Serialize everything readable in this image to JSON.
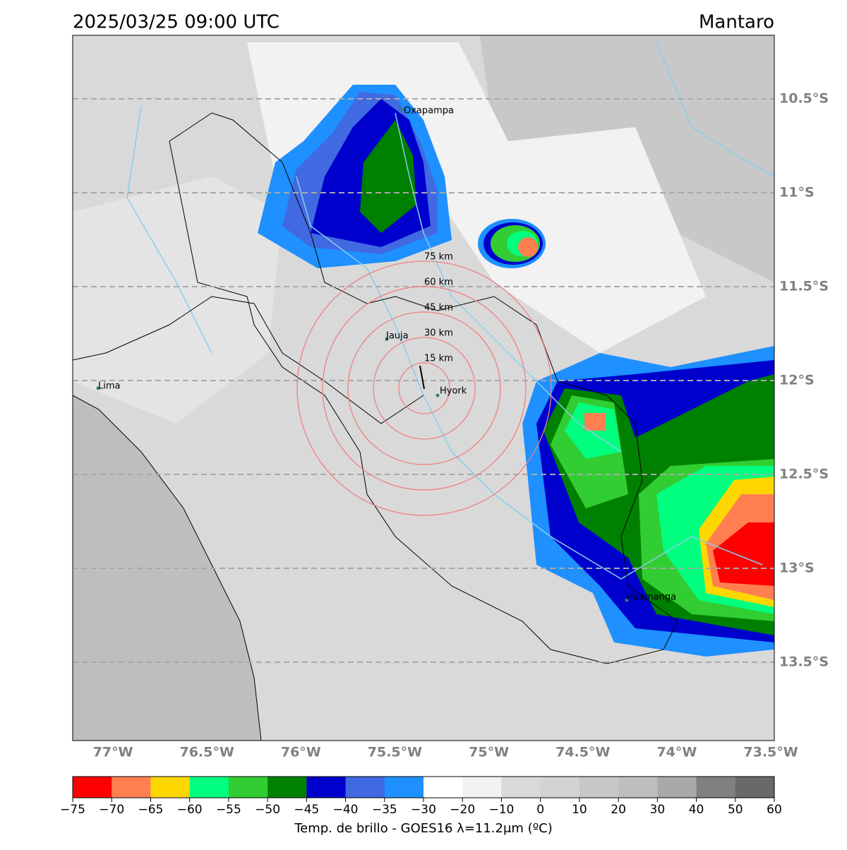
{
  "header": {
    "title": "2025/03/25 09:00 UTC",
    "region": "Mantaro"
  },
  "map": {
    "lon_ticks": [
      {
        "value": -77,
        "label": "77°W"
      },
      {
        "value": -76.5,
        "label": "76.5°W"
      },
      {
        "value": -76,
        "label": "76°W"
      },
      {
        "value": -75.5,
        "label": "75.5°W"
      },
      {
        "value": -75,
        "label": "75°W"
      },
      {
        "value": -74.5,
        "label": "74.5°W"
      },
      {
        "value": -74,
        "label": "74°W"
      },
      {
        "value": -73.5,
        "label": "73.5°W"
      }
    ],
    "lat_ticks": [
      {
        "value": -10.5,
        "label": "10.5°S"
      },
      {
        "value": -11,
        "label": "11°S"
      },
      {
        "value": -11.5,
        "label": "11.5°S"
      },
      {
        "value": -12,
        "label": "12°S"
      },
      {
        "value": -12.5,
        "label": "12.5°S"
      },
      {
        "value": -13,
        "label": "13°S"
      },
      {
        "value": -13.5,
        "label": "13.5°S"
      }
    ],
    "places": [
      "Oxapampa",
      "Jauja",
      "Hyork",
      "Lima",
      "Huamanga"
    ],
    "rings": [
      {
        "value": 15,
        "label": "15 km"
      },
      {
        "value": 30,
        "label": "30 km"
      },
      {
        "value": 45,
        "label": "45 km"
      },
      {
        "value": 60,
        "label": "60 km"
      },
      {
        "value": 75,
        "label": "75 km"
      }
    ]
  },
  "colorbar": {
    "label": "Temp. de brillo - GOES16 λ=11.2μm (ºC)",
    "ticks": [
      {
        "value": -75,
        "label": "−75"
      },
      {
        "value": -70,
        "label": "−70"
      },
      {
        "value": -65,
        "label": "−65"
      },
      {
        "value": -60,
        "label": "−60"
      },
      {
        "value": -55,
        "label": "−55"
      },
      {
        "value": -50,
        "label": "−50"
      },
      {
        "value": -45,
        "label": "−45"
      },
      {
        "value": -40,
        "label": "−40"
      },
      {
        "value": -35,
        "label": "−35"
      },
      {
        "value": -30,
        "label": "−30"
      },
      {
        "value": -20,
        "label": "−20"
      },
      {
        "value": -10,
        "label": "−10"
      },
      0,
      10,
      20,
      30,
      40,
      50,
      60
    ],
    "colors": [
      "#ff0000",
      "#ff7f50",
      "#ffd700",
      "#00ff7f",
      "#32cd32",
      "#008000",
      "#0000cd",
      "#4169e1",
      "#1e90ff",
      "#ffffff",
      "#f2f2f2",
      "#d9d9d9",
      "#d3d3d3",
      "#c8c8c8",
      "#bebebe",
      "#a9a9a9",
      "#808080",
      "#696969",
      "#000000"
    ]
  }
}
